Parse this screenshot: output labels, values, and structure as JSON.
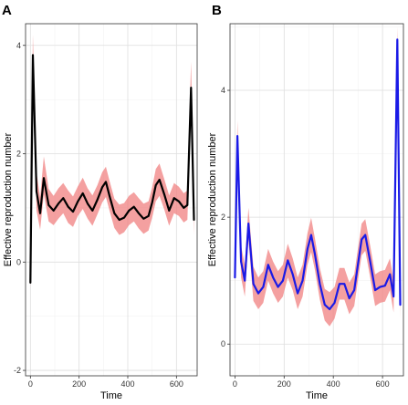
{
  "chart_data": [
    {
      "type": "line",
      "panel_label": "A",
      "xlabel": "Time",
      "ylabel": "Effective reproduction number",
      "xlim": [
        -20,
        685
      ],
      "ylim": [
        -2.1,
        4.4
      ],
      "xticks": [
        0,
        200,
        400,
        600
      ],
      "yticks": [
        -2,
        0,
        2,
        4
      ],
      "grid": true,
      "series": [
        {
          "line_color": "#000000",
          "ribbon_color": "#f08080",
          "x": [
            0,
            10,
            25,
            40,
            55,
            75,
            95,
            115,
            135,
            155,
            175,
            195,
            215,
            235,
            255,
            275,
            295,
            310,
            325,
            345,
            365,
            385,
            405,
            425,
            445,
            465,
            485,
            500,
            515,
            530,
            550,
            570,
            590,
            610,
            630,
            645,
            660,
            672
          ],
          "y": [
            -0.38,
            3.82,
            1.3,
            0.9,
            1.55,
            1.05,
            0.95,
            1.08,
            1.18,
            1.02,
            0.93,
            1.12,
            1.27,
            1.08,
            0.95,
            1.15,
            1.38,
            1.48,
            1.22,
            0.9,
            0.78,
            0.82,
            0.95,
            1.02,
            0.9,
            0.8,
            0.85,
            1.1,
            1.42,
            1.52,
            1.25,
            0.95,
            1.18,
            1.12,
            1.0,
            1.05,
            3.22,
            0.78
          ],
          "lower": [
            -0.5,
            3.45,
            0.95,
            0.6,
            1.25,
            0.75,
            0.68,
            0.8,
            0.9,
            0.72,
            0.65,
            0.85,
            0.98,
            0.8,
            0.67,
            0.88,
            1.1,
            1.2,
            0.95,
            0.63,
            0.5,
            0.55,
            0.68,
            0.75,
            0.62,
            0.52,
            0.58,
            0.82,
            1.12,
            1.22,
            0.97,
            0.67,
            0.9,
            0.85,
            0.73,
            0.78,
            2.8,
            0.5
          ],
          "upper": [
            -0.25,
            4.2,
            1.65,
            1.2,
            1.95,
            1.35,
            1.22,
            1.36,
            1.46,
            1.32,
            1.21,
            1.4,
            1.56,
            1.36,
            1.23,
            1.42,
            1.66,
            1.76,
            1.5,
            1.17,
            1.06,
            1.09,
            1.22,
            1.29,
            1.18,
            1.08,
            1.12,
            1.38,
            1.72,
            1.82,
            1.53,
            1.23,
            1.46,
            1.39,
            1.27,
            1.32,
            3.7,
            1.06
          ]
        }
      ]
    },
    {
      "type": "line",
      "panel_label": "B",
      "xlabel": "Time",
      "ylabel": "Effective reproduction number",
      "xlim": [
        -20,
        685
      ],
      "ylim": [
        -0.5,
        5.05
      ],
      "xticks": [
        0,
        200,
        400,
        600
      ],
      "yticks": [
        0,
        2,
        4
      ],
      "grid": true,
      "series": [
        {
          "line_color": "#1a1ae6",
          "ribbon_color": "#f08080",
          "x": [
            0,
            10,
            25,
            40,
            55,
            75,
            95,
            115,
            135,
            155,
            175,
            195,
            215,
            235,
            255,
            275,
            295,
            310,
            325,
            345,
            365,
            385,
            405,
            425,
            445,
            465,
            485,
            500,
            515,
            530,
            550,
            570,
            590,
            610,
            630,
            645,
            660,
            672
          ],
          "y": [
            1.05,
            3.28,
            1.3,
            1.0,
            1.9,
            0.95,
            0.8,
            0.9,
            1.25,
            1.05,
            0.9,
            1.0,
            1.32,
            1.1,
            0.8,
            1.0,
            1.5,
            1.72,
            1.42,
            0.95,
            0.62,
            0.55,
            0.65,
            0.95,
            0.95,
            0.72,
            0.85,
            1.25,
            1.65,
            1.72,
            1.3,
            0.85,
            0.9,
            0.92,
            1.1,
            0.75,
            4.8,
            0.62
          ],
          "lower": [
            0.95,
            3.05,
            1.05,
            0.75,
            1.65,
            0.68,
            0.55,
            0.65,
            1.0,
            0.8,
            0.65,
            0.75,
            1.05,
            0.85,
            0.55,
            0.75,
            1.25,
            1.45,
            1.17,
            0.7,
            0.37,
            0.28,
            0.4,
            0.7,
            0.7,
            0.47,
            0.6,
            1.0,
            1.4,
            1.47,
            1.05,
            0.6,
            0.65,
            0.67,
            0.85,
            0.5,
            4.5,
            0.4
          ],
          "upper": [
            1.15,
            3.52,
            1.55,
            1.25,
            2.15,
            1.22,
            1.05,
            1.15,
            1.5,
            1.3,
            1.15,
            1.25,
            1.58,
            1.35,
            1.05,
            1.25,
            1.75,
            1.99,
            1.67,
            1.2,
            0.87,
            0.82,
            0.9,
            1.2,
            1.2,
            0.97,
            1.1,
            1.5,
            1.9,
            1.97,
            1.55,
            1.1,
            1.15,
            1.17,
            1.35,
            1.0,
            5.0,
            0.84
          ]
        }
      ]
    }
  ]
}
